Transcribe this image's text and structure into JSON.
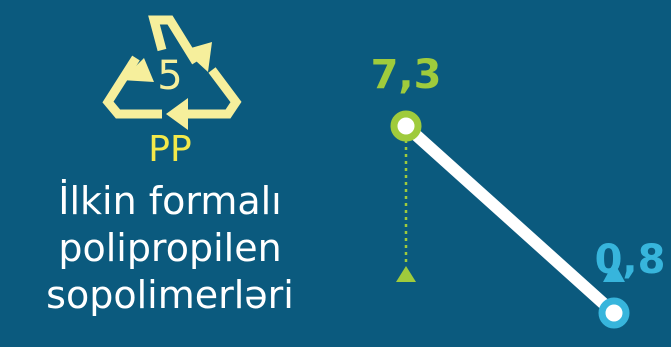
{
  "product": {
    "resin_code": "5",
    "resin_abbr": "PP",
    "name_lines": [
      "İlkin formalı",
      "polipropilen",
      "sopolimerləri"
    ]
  },
  "chart_data": {
    "type": "line",
    "categories": [
      "",
      ""
    ],
    "series": [
      {
        "values": [
          7.3,
          0.8
        ],
        "labels": [
          "7,3",
          "0,8"
        ]
      }
    ],
    "point_colors": [
      "#9fcb3c",
      "#37b5dc"
    ],
    "line_color": "#ffffff",
    "ylim": [
      0,
      7.3
    ],
    "grid": false,
    "legend": "none"
  },
  "colors": {
    "background": "#0b5a7e",
    "recycle_arrows": "#f6ef9c",
    "resin_abbr": "#f3e94a",
    "text": "#ffffff",
    "first_point": "#9fcb3c",
    "second_point": "#37b5dc"
  },
  "icons": {
    "recycle": "recycle-icon",
    "up_marker": "triangle-up-icon",
    "down_marker": "triangle-down-icon"
  }
}
